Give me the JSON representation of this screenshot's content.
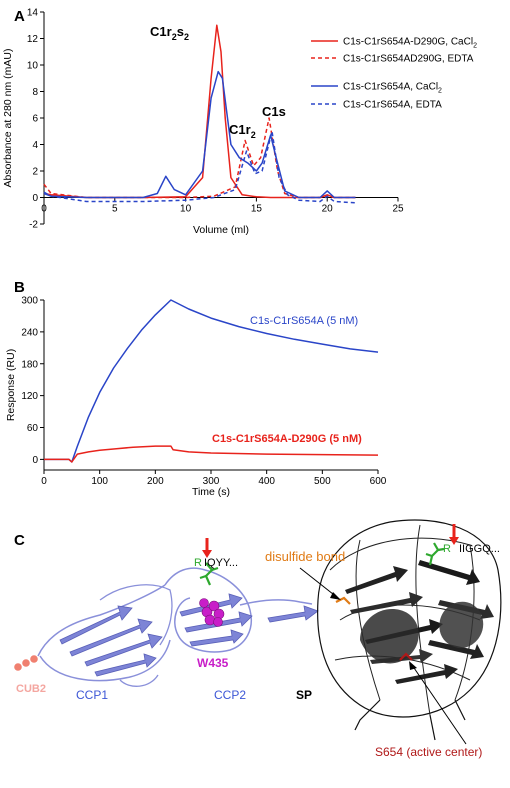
{
  "panel_a": {
    "letter": "A",
    "peak_c1r2s2_main": "C1r",
    "peak_c1r2s2_sub1": "2",
    "peak_c1r2s2_mid": "s",
    "peak_c1r2s2_sub2": "2",
    "peak_c1r2_main": "C1r",
    "peak_c1r2_sub": "2",
    "peak_c1s": "C1s",
    "legend": [
      {
        "text": "C1s-C1rS654A-D290G, CaCl",
        "sub": "2",
        "color": "#e8231c",
        "dash": false
      },
      {
        "text": "C1s-C1rS654AD290G, EDTA",
        "sub": "",
        "color": "#e8231c",
        "dash": true
      },
      {
        "text": "C1s-C1rS654A, CaCl",
        "sub": "2",
        "color": "#2a45c8",
        "dash": false
      },
      {
        "text": "C1s-C1rS654A, EDTA",
        "sub": "",
        "color": "#2a45c8",
        "dash": true
      }
    ]
  },
  "panel_b": {
    "letter": "B",
    "label_blue": "C1s-C1rS654A (5 nM)",
    "label_red": "C1s-C1rS654A-D290G (5 nM)"
  },
  "panel_c": {
    "letter": "C",
    "disulfide": "disulfide bond",
    "r_left": "R",
    "seq_left": "IQYY...",
    "r_right": "R",
    "seq_right": "IIGGQ...",
    "w435": "W435",
    "cub2": "CUB2",
    "ccp1": "CCP1",
    "ccp2": "CCP2",
    "sp": "SP",
    "s654": "S654 (active center)"
  },
  "colors": {
    "red": "#e8231c",
    "blue": "#2a45c8",
    "magenta": "#c81ec8",
    "green": "#2ea82e",
    "orange": "#e07b16"
  },
  "chart_data": [
    {
      "type": "line",
      "xlabel": "Volume (ml)",
      "ylabel": "Absorbance at 280 nm (mAU)",
      "xlim": [
        0,
        25
      ],
      "ylim": [
        -2,
        14
      ],
      "xticks": [
        0,
        5,
        10,
        15,
        20,
        25
      ],
      "yticks": [
        -2,
        0,
        2,
        4,
        6,
        8,
        10,
        12,
        14
      ],
      "grid": false,
      "legend_position": "top-right",
      "series": [
        {
          "name": "C1s-C1rS654A-D290G, CaCl2",
          "color": "#e8231c",
          "dash": false,
          "x": [
            0,
            0.5,
            3,
            7,
            10,
            11.2,
            11.8,
            12.2,
            12.5,
            12.8,
            13.2,
            14,
            15,
            16,
            17,
            18,
            19.5,
            20,
            20.5,
            22
          ],
          "y": [
            0.3,
            0.2,
            0,
            0,
            0.05,
            1.5,
            9,
            13,
            11,
            6,
            1.5,
            0.2,
            0.05,
            0,
            0,
            0,
            0,
            0.2,
            0,
            0
          ]
        },
        {
          "name": "C1s-C1rS654AD290G, EDTA",
          "color": "#e8231c",
          "dash": true,
          "x": [
            0,
            0.5,
            3,
            7,
            10,
            12,
            13.5,
            14.2,
            14.8,
            15.3,
            15.9,
            16.5,
            17,
            18,
            19.5,
            20,
            20.5,
            22
          ],
          "y": [
            1.0,
            0.3,
            0,
            0,
            0,
            0.1,
            0.8,
            4.3,
            2.4,
            3.0,
            6.0,
            2.0,
            0.3,
            0,
            0,
            0.1,
            0,
            0
          ]
        },
        {
          "name": "C1s-C1rS654A, CaCl2",
          "color": "#2a45c8",
          "dash": false,
          "x": [
            0,
            0.5,
            3,
            7,
            8,
            8.6,
            9.2,
            10,
            11.2,
            11.8,
            12.3,
            12.6,
            13.2,
            13.8,
            14.4,
            15,
            15.4,
            16,
            16.4,
            17,
            18,
            19.5,
            20,
            20.5,
            22
          ],
          "y": [
            0.3,
            0.1,
            0,
            0,
            0.3,
            1.6,
            0.6,
            0.2,
            2.0,
            7.5,
            9.5,
            9.0,
            4.0,
            3.0,
            2.6,
            2.0,
            2.6,
            4.7,
            3.0,
            0.5,
            0,
            0,
            0.5,
            0,
            0
          ]
        },
        {
          "name": "C1s-C1rS654A, EDTA",
          "color": "#2a45c8",
          "dash": true,
          "x": [
            0,
            0.5,
            3,
            7,
            10,
            12,
            13.5,
            14.3,
            14.9,
            15.4,
            16.1,
            16.6,
            17.2,
            18,
            19.5,
            20,
            20.5,
            22
          ],
          "y": [
            0.4,
            0.1,
            -0.3,
            -0.3,
            -0.2,
            0,
            0.6,
            3.5,
            1.8,
            2.0,
            5.0,
            1.5,
            0.2,
            -0.2,
            -0.3,
            0.1,
            -0.3,
            -0.4
          ]
        }
      ]
    },
    {
      "type": "line",
      "xlabel": "Time (s)",
      "ylabel": "Response (RU)",
      "xlim": [
        0,
        600
      ],
      "ylim": [
        -20,
        300
      ],
      "xticks": [
        0,
        100,
        200,
        300,
        400,
        500,
        600
      ],
      "yticks": [
        0,
        60,
        120,
        180,
        240,
        300
      ],
      "grid": false,
      "series": [
        {
          "name": "C1s-C1rS654A (5 nM)",
          "color": "#2a45c8",
          "x": [
            0,
            45,
            50,
            60,
            80,
            100,
            125,
            150,
            175,
            200,
            228,
            260,
            300,
            350,
            400,
            450,
            500,
            550,
            600
          ],
          "y": [
            0,
            0,
            -5,
            25,
            80,
            126,
            172,
            209,
            243,
            272,
            300,
            283,
            266,
            250,
            237,
            226,
            217,
            208,
            202
          ]
        },
        {
          "name": "C1s-C1rS654A-D290G (5 nM)",
          "color": "#e8231c",
          "x": [
            0,
            45,
            50,
            60,
            80,
            100,
            130,
            160,
            200,
            228,
            232,
            260,
            300,
            400,
            500,
            600
          ],
          "y": [
            0,
            0,
            -5,
            10,
            14,
            17,
            20,
            23,
            25,
            25,
            18,
            14,
            12,
            10,
            9,
            8
          ]
        }
      ]
    }
  ]
}
